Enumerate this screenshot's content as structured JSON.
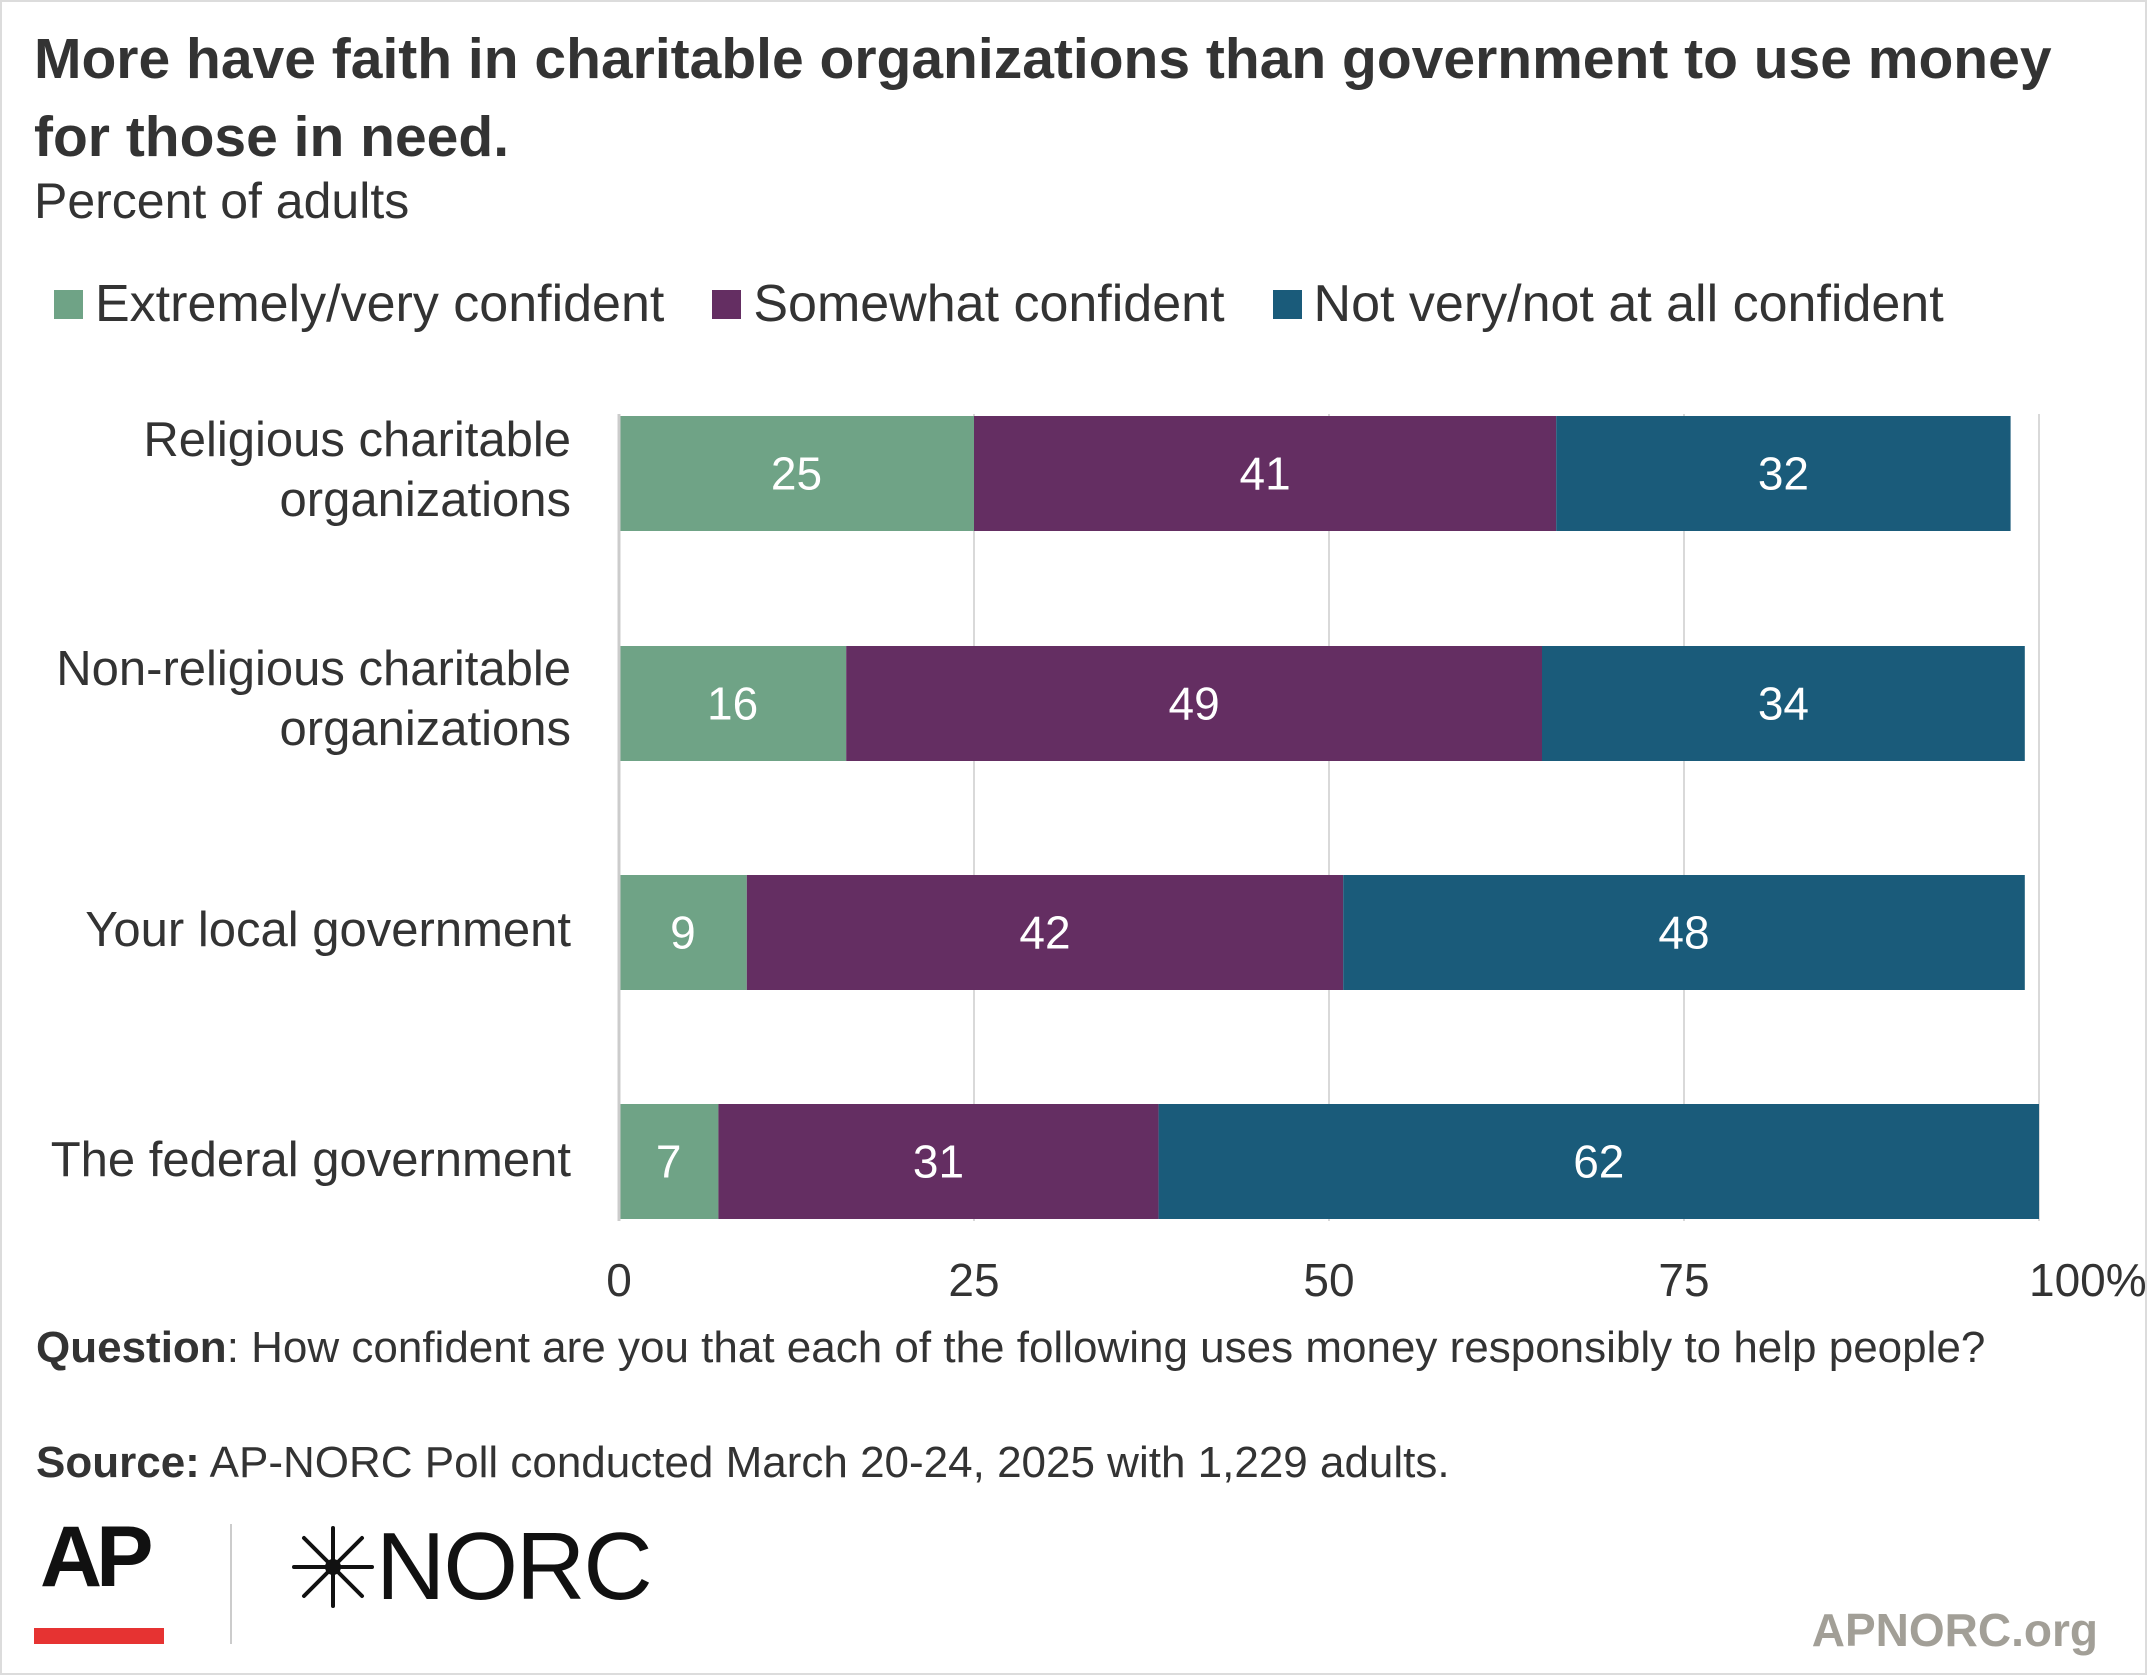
{
  "title": "More have faith in charitable organizations than government to use money for those in need.",
  "subtitle": "Percent of adults",
  "chart_data": {
    "type": "bar",
    "orientation": "horizontal",
    "stacked": true,
    "categories": [
      "Religious charitable\norganizations",
      "Non-religious charitable\norganizations",
      "Your local government",
      "The federal government"
    ],
    "series": [
      {
        "name": "Extremely/very confident",
        "color": "#6fa386",
        "values": [
          25,
          16,
          9,
          7
        ]
      },
      {
        "name": "Somewhat confident",
        "color": "#642e62",
        "values": [
          41,
          49,
          42,
          31
        ]
      },
      {
        "name": "Not very/not at all confident",
        "color": "#1a5b7a",
        "values": [
          32,
          34,
          48,
          62
        ]
      }
    ],
    "x_ticks": [
      "0",
      "25",
      "50",
      "75",
      "100%"
    ],
    "xlim": [
      0,
      100
    ],
    "grid": true,
    "legend_position": "top"
  },
  "notes": {
    "question_label": "Question",
    "question_text": ": How confident are you that each of the following uses money responsibly to help people?",
    "source_label": "Source:",
    "source_text": " AP-NORC Poll conducted March 20-24, 2025 with 1,229 adults."
  },
  "logos": {
    "ap": "AP",
    "norc": "NORC",
    "ap_accent_color": "#e63332"
  },
  "site": "APNORC.org"
}
